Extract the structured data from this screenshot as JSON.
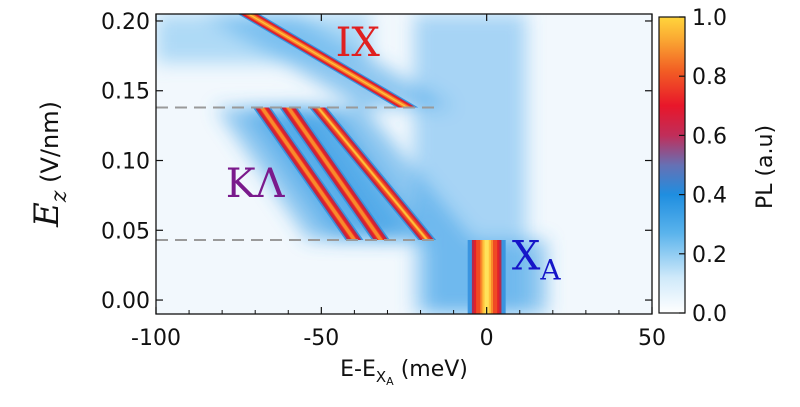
{
  "chart_data": {
    "type": "heatmap",
    "xlabel": "E-E",
    "xlabel_sub": "X",
    "xlabel_subsub": "A",
    "xlabel_unit": "(meV)",
    "ylabel": "E",
    "ylabel_sub": "z",
    "ylabel_unit": "(V/nm)",
    "xlim": [
      -100,
      50
    ],
    "ylim": [
      -0.01,
      0.205
    ],
    "xticks": [
      -100,
      -50,
      0,
      50
    ],
    "xtick_labels": [
      "-100",
      "-50",
      "0",
      "50"
    ],
    "yticks": [
      0.0,
      0.05,
      0.1,
      0.15,
      0.2
    ],
    "ytick_labels": [
      "0.00",
      "0.05",
      "0.10",
      "0.15",
      "0.20"
    ],
    "colorbar": {
      "label": "PL (a.u)",
      "range": [
        0.0,
        1.0
      ],
      "ticks": [
        0.0,
        0.2,
        0.4,
        0.6,
        0.8,
        1.0
      ],
      "tick_labels": [
        "0.0",
        "0.2",
        "0.4",
        "0.6",
        "0.8",
        "1.0"
      ]
    },
    "transitions": [
      {
        "Ez": 0.043,
        "style": "dashed",
        "color": "#9a9a9a"
      },
      {
        "Ez": 0.138,
        "style": "dashed",
        "color": "#9a9a9a"
      }
    ],
    "annotations": [
      {
        "text": "IX",
        "x": -39,
        "y": 0.175,
        "color": "#e02020"
      },
      {
        "text": "KΛ",
        "x": -70,
        "y": 0.074,
        "color": "#7a1a8c"
      },
      {
        "text": "X",
        "sub": "A",
        "x": 15,
        "y": 0.022,
        "color": "#1515c8"
      }
    ],
    "lines": [
      {
        "name": "XA",
        "Ez_range": [
          -0.01,
          0.043
        ],
        "energy_at_start": 0,
        "energy_at_end": 0,
        "intensity": 1.0
      },
      {
        "name": "KΛ-1",
        "Ez_range": [
          0.043,
          0.138
        ],
        "energy_at_start": -40,
        "energy_at_end": -68,
        "intensity": 0.75
      },
      {
        "name": "KΛ-2",
        "Ez_range": [
          0.043,
          0.138
        ],
        "energy_at_start": -32,
        "energy_at_end": -60,
        "intensity": 0.75
      },
      {
        "name": "KΛ-3",
        "Ez_range": [
          0.043,
          0.138
        ],
        "energy_at_start": -18,
        "energy_at_end": -51,
        "intensity": 0.85
      },
      {
        "name": "IX",
        "Ez_range": [
          0.138,
          0.205
        ],
        "energy_at_start": -24,
        "energy_at_end": -72,
        "intensity": 0.9
      }
    ]
  }
}
